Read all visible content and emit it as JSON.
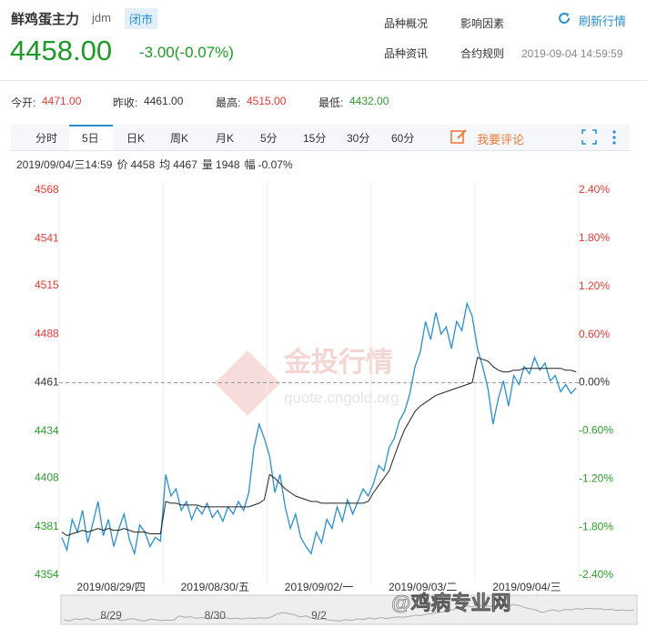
{
  "header": {
    "title": "鲜鸡蛋主力",
    "code": "jdm",
    "status": "闭市",
    "price": "4458.00",
    "change": "-3.00(-0.07%)",
    "links": [
      "品种概况",
      "影响因素",
      "品种资讯",
      "合约规则"
    ],
    "refresh": "刷新行情",
    "time": "2019-09-04 14:59:59"
  },
  "stats": [
    {
      "label": "今开:",
      "value": "4471.00",
      "color": "#e53935"
    },
    {
      "label": "昨收:",
      "value": "4461.00",
      "color": "#333333"
    },
    {
      "label": "最高:",
      "value": "4515.00",
      "color": "#e53935"
    },
    {
      "label": "最低:",
      "value": "4432.00",
      "color": "#2e9b2e"
    }
  ],
  "tabs": {
    "items": [
      "分时",
      "5日",
      "日K",
      "周K",
      "月K",
      "5分",
      "15分",
      "30分",
      "60分"
    ],
    "active": 1,
    "comment": "我要评论"
  },
  "info": [
    "2019/09/04/三14:59",
    "价",
    "4458",
    "均",
    "4467",
    "量",
    "1948",
    "幅",
    "-0.07%"
  ],
  "watermark": [
    "金投行情",
    "quote.cngold.org",
    "@鸡病专业网"
  ],
  "chart_data": {
    "type": "line",
    "days": [
      "2019/08/29/四",
      "2019/08/30/五",
      "2019/09/02/一",
      "2019/09/03/二",
      "2019/09/04/三"
    ],
    "series": [
      {
        "name": "价",
        "color": "#2a8fd0",
        "values": [
          4375,
          4368,
          4385,
          4378,
          4390,
          4372,
          4383,
          4395,
          4376,
          4385,
          4370,
          4380,
          4388,
          4374,
          4366,
          4382,
          4378,
          4370,
          4375,
          4373,
          4410,
          4398,
          4402,
          4390,
          4395,
          4385,
          4392,
          4388,
          4394,
          4386,
          4390,
          4384,
          4392,
          4388,
          4395,
          4390,
          4400,
          4425,
          4438,
          4430,
          4420,
          4400,
          4410,
          4392,
          4380,
          4388,
          4375,
          4370,
          4366,
          4378,
          4372,
          4385,
          4380,
          4392,
          4384,
          4396,
          4388,
          4395,
          4402,
          4398,
          4405,
          4415,
          4412,
          4425,
          4430,
          4440,
          4445,
          4455,
          4470,
          4478,
          4495,
          4485,
          4500,
          4488,
          4492,
          4480,
          4495,
          4490,
          4505,
          4498,
          4480,
          4470,
          4458,
          4438,
          4452,
          4462,
          4448,
          4465,
          4460,
          4470,
          4466,
          4475,
          4468,
          4472,
          4462,
          4465,
          4456,
          4460,
          4455,
          4458
        ]
      },
      {
        "name": "均",
        "color": "#222222",
        "values": [
          4378,
          4376,
          4377,
          4378,
          4379,
          4378,
          4379,
          4380,
          4379,
          4380,
          4379,
          4379,
          4380,
          4379,
          4378,
          4378,
          4378,
          4377,
          4377,
          4377,
          4395,
          4394,
          4394,
          4393,
          4393,
          4393,
          4393,
          4392,
          4392,
          4392,
          4392,
          4392,
          4392,
          4392,
          4392,
          4392,
          4392,
          4393,
          4394,
          4396,
          4410,
          4408,
          4405,
          4402,
          4400,
          4398,
          4397,
          4396,
          4395,
          4395,
          4394,
          4394,
          4394,
          4394,
          4394,
          4394,
          4394,
          4394,
          4394,
          4395,
          4400,
          4404,
          4408,
          4412,
          4420,
          4428,
          4435,
          4440,
          4445,
          4448,
          4450,
          4452,
          4454,
          4455,
          4456,
          4457,
          4458,
          4459,
          4460,
          4461,
          4475,
          4474,
          4473,
          4470,
          4468,
          4467,
          4467,
          4468,
          4468,
          4469,
          4469,
          4469,
          4469,
          4469,
          4469,
          4469,
          4469,
          4468,
          4468,
          4467
        ]
      }
    ],
    "ylim": [
      4354,
      4568
    ],
    "yticks": [
      4568,
      4541,
      4515,
      4488,
      4461,
      4434,
      4408,
      4381,
      4354
    ],
    "y2lim": [
      -2.4,
      2.4
    ],
    "y2ticks": [
      {
        "value": 2.4,
        "label": "2.40%"
      },
      {
        "value": 1.8,
        "label": "1.80%"
      },
      {
        "value": 1.2,
        "label": "1.20%"
      },
      {
        "value": 0.6,
        "label": "0.60%"
      },
      {
        "value": 0,
        "label": "0.00%"
      },
      {
        "value": -0.6,
        "label": "-0.60%"
      },
      {
        "value": -1.2,
        "label": "-1.20%"
      },
      {
        "value": -1.8,
        "label": "-1.80%"
      },
      {
        "value": -2.4,
        "label": "-2.40%"
      }
    ],
    "baseline": 4461,
    "up_color": "#e53935",
    "down_color": "#2e9b2e",
    "navigator": [
      "8/29",
      "8/30",
      "9/2"
    ]
  }
}
